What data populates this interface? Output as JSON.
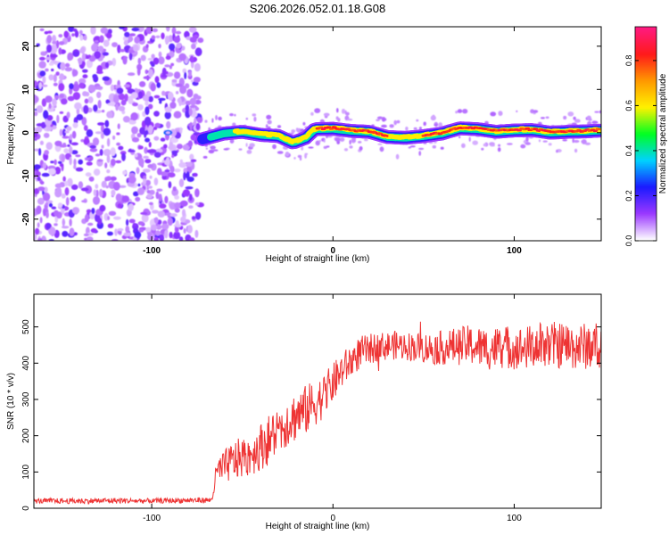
{
  "chart_data": [
    {
      "type": "heatmap",
      "title": "S206.2026.052.01.18.G08",
      "xlabel": "Height of straight line (km)",
      "ylabel": "Frequency (Hz)",
      "xlim": [
        -165,
        148
      ],
      "ylim": [
        -25,
        24.5
      ],
      "x_ticks": [
        -100,
        0,
        100
      ],
      "y_ticks": [
        -20,
        -10,
        0,
        10,
        20
      ],
      "colorbar": {
        "label": "Normalized spectral amplitude",
        "range": [
          0,
          0.95
        ],
        "ticks": [
          0.0,
          0.2,
          0.4,
          0.6,
          0.8
        ],
        "colors": [
          "#ffffff",
          "#9a38ff",
          "#1a1aff",
          "#00d2ff",
          "#00ff22",
          "#fff200",
          "#ff9900",
          "#ff1a1a",
          "#ff1a80"
        ]
      },
      "ridge": {
        "description": "dominant Doppler frequency trace",
        "start_height_km": -72,
        "heights_km": [
          -72,
          -60,
          -50,
          -40,
          -30,
          -22,
          -15,
          -10,
          0,
          10,
          20,
          30,
          40,
          50,
          60,
          70,
          80,
          90,
          100,
          110,
          120,
          130,
          140,
          148
        ],
        "frequency_hz": [
          -1.5,
          -0.2,
          0.2,
          -0.5,
          -0.8,
          -2.3,
          -1.2,
          0.8,
          0.9,
          0.4,
          0.2,
          -1.0,
          -1.2,
          -0.8,
          -0.2,
          1.0,
          0.8,
          0.2,
          0.5,
          0.6,
          0.0,
          0.2,
          0.3,
          0.5
        ],
        "amplitude": [
          0.3,
          0.45,
          0.6,
          0.7,
          0.75,
          0.6,
          0.7,
          0.8,
          0.85,
          0.85,
          0.8,
          0.8,
          0.75,
          0.8,
          0.85,
          0.9,
          0.9,
          0.88,
          0.9,
          0.9,
          0.92,
          0.92,
          0.93,
          0.93
        ]
      },
      "noise_region_height_km": [
        -165,
        -73
      ]
    },
    {
      "type": "line",
      "title": "",
      "xlabel": "Height of straight line (km)",
      "ylabel": "SNR (10 * v/v)",
      "xlim": [
        -165,
        148
      ],
      "ylim": [
        0,
        590
      ],
      "x_ticks": [
        -100,
        0,
        100
      ],
      "y_ticks": [
        0,
        100,
        200,
        300,
        400,
        500
      ],
      "series": [
        {
          "name": "SNR",
          "color": "#ee3333",
          "x": [
            -165,
            -140,
            -120,
            -100,
            -80,
            -67,
            -64,
            -55,
            -45,
            -35,
            -25,
            -15,
            -5,
            5,
            15,
            25,
            35,
            45,
            55,
            65,
            75,
            85,
            95,
            105,
            115,
            125,
            135,
            148
          ],
          "values": [
            20,
            20,
            21,
            20,
            22,
            22,
            100,
            130,
            150,
            190,
            240,
            270,
            310,
            380,
            430,
            445,
            450,
            445,
            440,
            445,
            450,
            440,
            445,
            440,
            450,
            450,
            445,
            450
          ],
          "noise_amplitude": [
            7,
            8,
            8,
            7,
            8,
            8,
            40,
            55,
            60,
            70,
            70,
            70,
            60,
            50,
            45,
            40,
            40,
            40,
            45,
            50,
            55,
            60,
            60,
            60,
            65,
            65,
            65,
            65
          ]
        }
      ]
    }
  ]
}
